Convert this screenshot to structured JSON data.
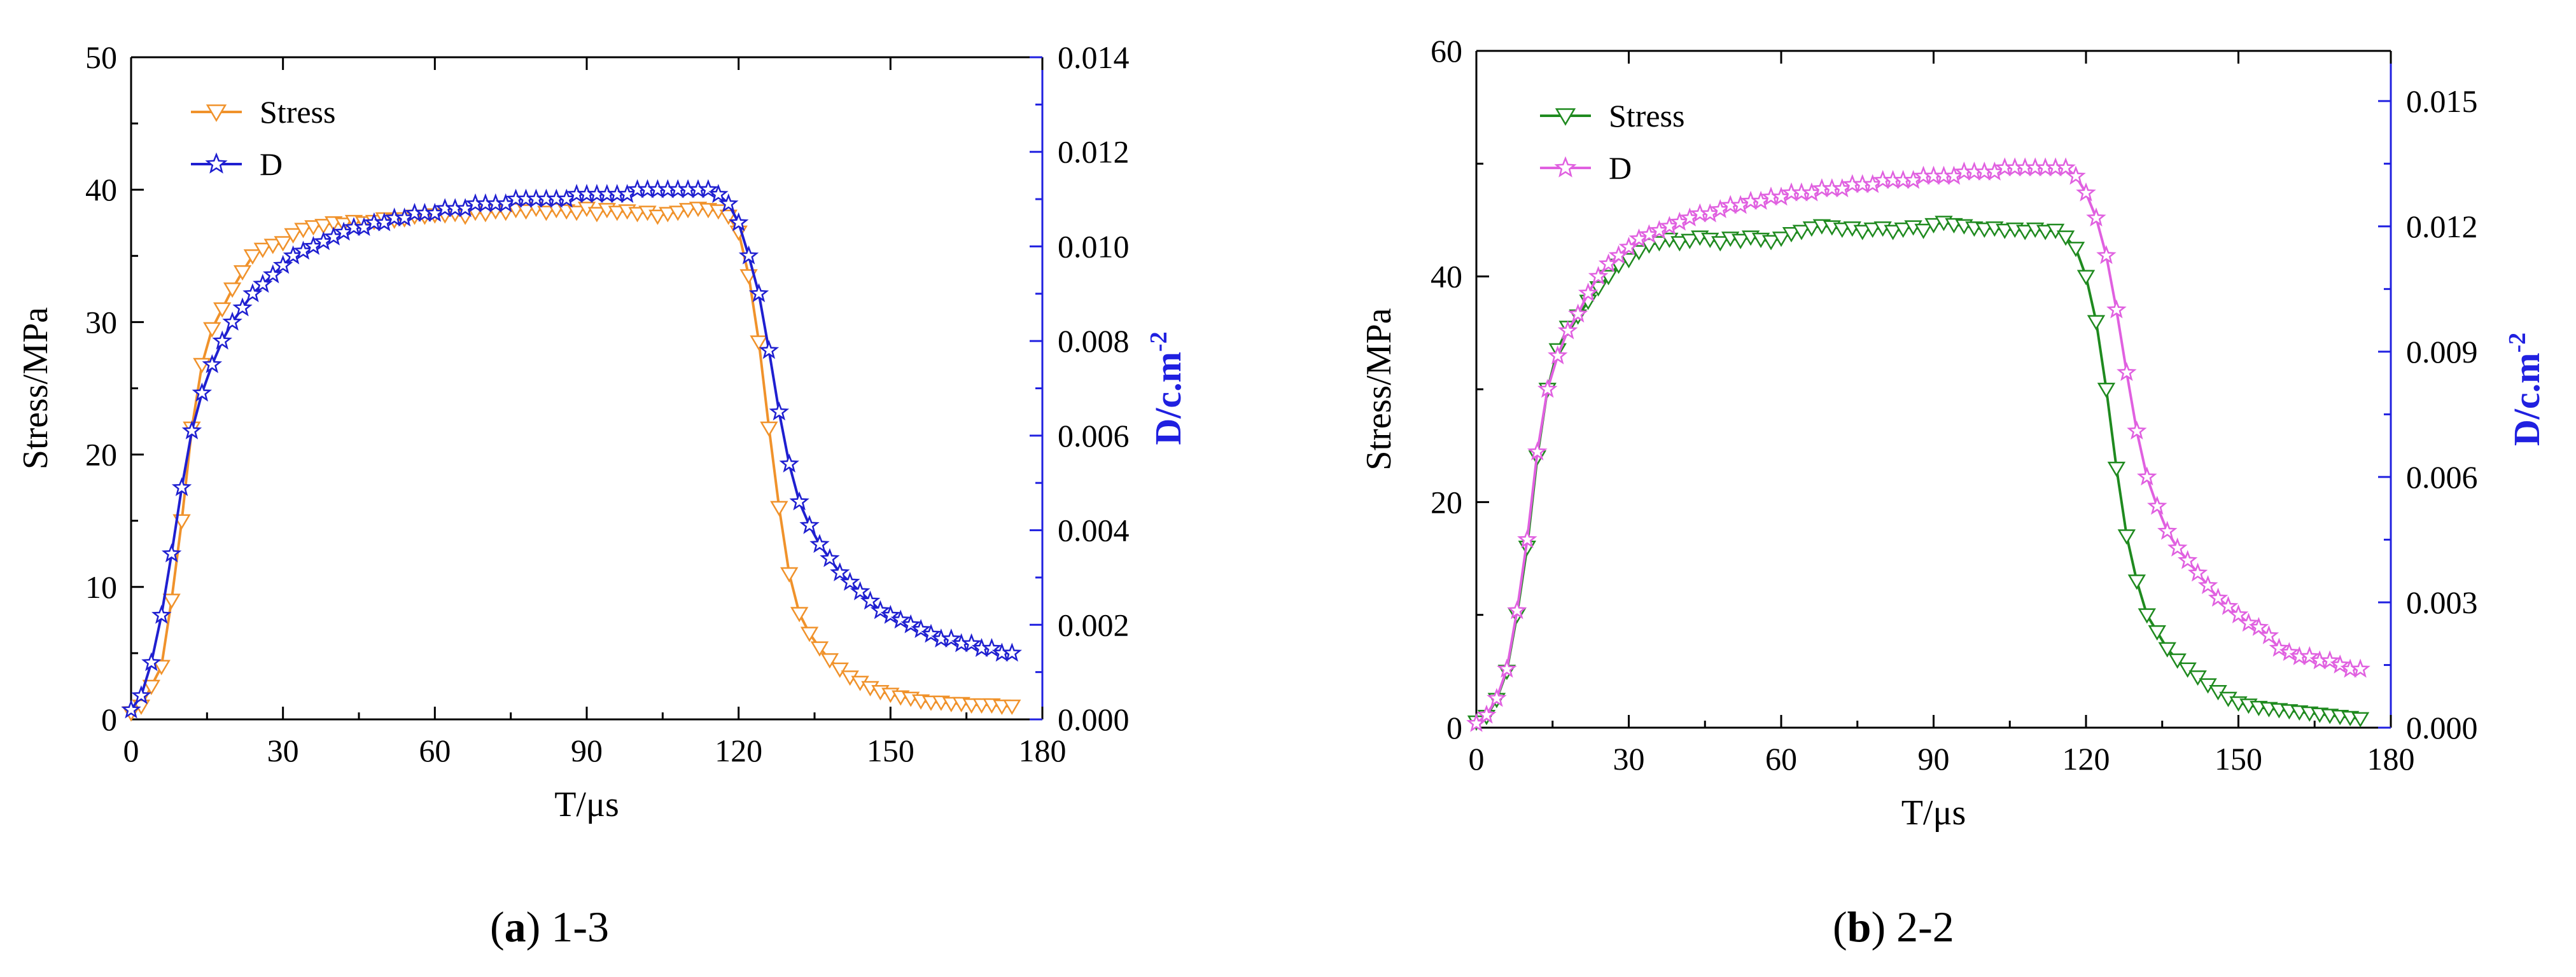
{
  "chart_data": [
    {
      "id": "a",
      "type": "line",
      "caption": {
        "letter": "a",
        "label": "1-3"
      },
      "xlabel": "T/μs",
      "ylabel_left": "Stress/MPa",
      "ylabel_right": "D/c.m",
      "ylabel_right_sup": "-2",
      "xlim": [
        0,
        180
      ],
      "ylim_left": [
        0,
        50
      ],
      "ylim_right": [
        0,
        0.014
      ],
      "xticks": [
        "0",
        "30",
        "60",
        "90",
        "120",
        "150",
        "180"
      ],
      "yticks_left": [
        "0",
        "10",
        "20",
        "30",
        "40",
        "50"
      ],
      "yticks_right": [
        "0.000",
        "0.002",
        "0.004",
        "0.006",
        "0.008",
        "0.010",
        "0.012",
        "0.014"
      ],
      "legend": [
        "Stress",
        "D"
      ],
      "colors": {
        "stress": "#f0922b",
        "d": "#1f1fd0",
        "right_axis": "#2020e0"
      },
      "series": [
        {
          "name": "Stress",
          "axis": "left",
          "marker": "triangle-down",
          "x": [
            0,
            2,
            4,
            6,
            8,
            10,
            12,
            14,
            16,
            18,
            20,
            22,
            24,
            26,
            28,
            30,
            32,
            34,
            36,
            38,
            40,
            42,
            44,
            46,
            48,
            50,
            52,
            54,
            56,
            58,
            60,
            62,
            64,
            66,
            68,
            70,
            72,
            74,
            76,
            78,
            80,
            82,
            84,
            86,
            88,
            90,
            92,
            94,
            96,
            98,
            100,
            102,
            104,
            106,
            108,
            110,
            112,
            114,
            116,
            118,
            120,
            122,
            124,
            126,
            128,
            130,
            132,
            134,
            136,
            138,
            140,
            142,
            144,
            146,
            148,
            150,
            152,
            154,
            156,
            158,
            160,
            162,
            164,
            166,
            168,
            170,
            172,
            174
          ],
          "values": [
            0.5,
            1.0,
            2.5,
            4.0,
            9.0,
            15.0,
            22.0,
            26.8,
            29.5,
            31.0,
            32.5,
            33.8,
            35.0,
            35.5,
            35.8,
            36.0,
            36.6,
            37.0,
            37.2,
            37.3,
            37.5,
            37.4,
            37.6,
            37.5,
            37.6,
            37.8,
            37.7,
            37.8,
            38.0,
            38.0,
            38.1,
            38.1,
            38.2,
            38.0,
            38.3,
            38.2,
            38.4,
            38.3,
            38.5,
            38.4,
            38.6,
            38.3,
            38.5,
            38.4,
            38.3,
            38.6,
            38.2,
            38.5,
            38.3,
            38.4,
            38.2,
            38.3,
            38.0,
            38.2,
            38.3,
            38.5,
            38.6,
            38.5,
            38.4,
            38.0,
            36.8,
            33.5,
            28.5,
            22.0,
            16.0,
            11.0,
            8.0,
            6.5,
            5.4,
            4.5,
            3.8,
            3.2,
            2.8,
            2.4,
            2.1,
            1.9,
            1.7,
            1.6,
            1.4,
            1.3,
            1.3,
            1.2,
            1.2,
            1.1,
            1.1,
            1.1,
            1.0,
            1.0
          ]
        },
        {
          "name": "D",
          "axis": "right",
          "marker": "star",
          "x": [
            0,
            2,
            4,
            6,
            8,
            10,
            12,
            14,
            16,
            18,
            20,
            22,
            24,
            26,
            28,
            30,
            32,
            34,
            36,
            38,
            40,
            42,
            44,
            46,
            48,
            50,
            52,
            54,
            56,
            58,
            60,
            62,
            64,
            66,
            68,
            70,
            72,
            74,
            76,
            78,
            80,
            82,
            84,
            86,
            88,
            90,
            92,
            94,
            96,
            98,
            100,
            102,
            104,
            106,
            108,
            110,
            112,
            114,
            116,
            118,
            120,
            122,
            124,
            126,
            128,
            130,
            132,
            134,
            136,
            138,
            140,
            142,
            144,
            146,
            148,
            150,
            152,
            154,
            156,
            158,
            160,
            162,
            164,
            166,
            168,
            170,
            172,
            174
          ],
          "values": [
            0.0002,
            0.0005,
            0.0012,
            0.0022,
            0.0035,
            0.0049,
            0.0061,
            0.0069,
            0.0075,
            0.008,
            0.0084,
            0.0087,
            0.009,
            0.0092,
            0.0094,
            0.0096,
            0.0098,
            0.0099,
            0.01,
            0.0101,
            0.0102,
            0.0103,
            0.0104,
            0.0104,
            0.0105,
            0.0105,
            0.0106,
            0.0106,
            0.0107,
            0.0107,
            0.0107,
            0.0108,
            0.0108,
            0.0108,
            0.0109,
            0.0109,
            0.0109,
            0.0109,
            0.011,
            0.011,
            0.011,
            0.011,
            0.011,
            0.011,
            0.0111,
            0.0111,
            0.0111,
            0.0111,
            0.0111,
            0.0111,
            0.0112,
            0.0112,
            0.0112,
            0.0112,
            0.0112,
            0.0112,
            0.0112,
            0.0112,
            0.0111,
            0.0109,
            0.0105,
            0.0098,
            0.009,
            0.0078,
            0.0065,
            0.0054,
            0.0046,
            0.0041,
            0.0037,
            0.0034,
            0.0031,
            0.0029,
            0.0027,
            0.0025,
            0.0023,
            0.0022,
            0.0021,
            0.002,
            0.0019,
            0.0018,
            0.0017,
            0.0017,
            0.0016,
            0.0016,
            0.0015,
            0.0015,
            0.0014,
            0.0014
          ]
        }
      ]
    },
    {
      "id": "b",
      "type": "line",
      "caption": {
        "letter": "b",
        "label": "2-2"
      },
      "xlabel": "T/μs",
      "ylabel_left": "Stress/MPa",
      "ylabel_right": "D/c.m",
      "ylabel_right_sup": "-2",
      "xlim": [
        0,
        180
      ],
      "ylim_left": [
        0,
        60
      ],
      "ylim_right": [
        0,
        0.0162
      ],
      "xticks": [
        "0",
        "30",
        "60",
        "90",
        "120",
        "150",
        "180"
      ],
      "yticks_left": [
        "0",
        "20",
        "40",
        "60"
      ],
      "yticks_right": [
        "0.000",
        "0.003",
        "0.006",
        "0.009",
        "0.012",
        "0.015"
      ],
      "legend": [
        "Stress",
        "D"
      ],
      "colors": {
        "stress": "#1f8a1f",
        "d": "#e060e0",
        "right_axis": "#2020e0"
      },
      "series": [
        {
          "name": "Stress",
          "axis": "left",
          "marker": "triangle-down",
          "x": [
            0,
            2,
            4,
            6,
            8,
            10,
            12,
            14,
            16,
            18,
            20,
            22,
            24,
            26,
            28,
            30,
            32,
            34,
            36,
            38,
            40,
            42,
            44,
            46,
            48,
            50,
            52,
            54,
            56,
            58,
            60,
            62,
            64,
            66,
            68,
            70,
            72,
            74,
            76,
            78,
            80,
            82,
            84,
            86,
            88,
            90,
            92,
            94,
            96,
            98,
            100,
            102,
            104,
            106,
            108,
            110,
            112,
            114,
            116,
            118,
            120,
            122,
            124,
            126,
            128,
            130,
            132,
            134,
            136,
            138,
            140,
            142,
            144,
            146,
            148,
            150,
            152,
            154,
            156,
            158,
            160,
            162,
            164,
            166,
            168,
            170,
            172,
            174
          ],
          "values": [
            0.5,
            1.0,
            2.5,
            5.0,
            10.0,
            16.0,
            24.0,
            30.0,
            33.5,
            35.5,
            36.5,
            37.8,
            39.0,
            40.0,
            41.0,
            41.5,
            42.2,
            42.8,
            43.0,
            43.3,
            43.0,
            43.2,
            43.5,
            43.3,
            43.0,
            43.4,
            43.2,
            43.5,
            43.3,
            43.1,
            43.4,
            43.8,
            44.0,
            44.3,
            44.5,
            44.4,
            44.2,
            44.3,
            44.0,
            44.2,
            44.3,
            44.0,
            44.2,
            44.4,
            44.1,
            44.6,
            44.8,
            44.6,
            44.5,
            44.3,
            44.2,
            44.3,
            44.1,
            44.2,
            44.0,
            44.2,
            44.0,
            44.1,
            43.5,
            42.5,
            40.0,
            36.0,
            30.0,
            23.0,
            17.0,
            13.0,
            10.0,
            8.5,
            7.0,
            6.0,
            5.2,
            4.5,
            3.8,
            3.2,
            2.6,
            2.2,
            2.0,
            1.8,
            1.7,
            1.6,
            1.5,
            1.4,
            1.3,
            1.2,
            1.1,
            1.0,
            0.9,
            0.8
          ]
        },
        {
          "name": "D",
          "axis": "right",
          "marker": "star",
          "x": [
            0,
            2,
            4,
            6,
            8,
            10,
            12,
            14,
            16,
            18,
            20,
            22,
            24,
            26,
            28,
            30,
            32,
            34,
            36,
            38,
            40,
            42,
            44,
            46,
            48,
            50,
            52,
            54,
            56,
            58,
            60,
            62,
            64,
            66,
            68,
            70,
            72,
            74,
            76,
            78,
            80,
            82,
            84,
            86,
            88,
            90,
            92,
            94,
            96,
            98,
            100,
            102,
            104,
            106,
            108,
            110,
            112,
            114,
            116,
            118,
            120,
            122,
            124,
            126,
            128,
            130,
            132,
            134,
            136,
            138,
            140,
            142,
            144,
            146,
            148,
            150,
            152,
            154,
            156,
            158,
            160,
            162,
            164,
            166,
            168,
            170,
            172,
            174
          ],
          "values": [
            0.0001,
            0.0003,
            0.0007,
            0.0014,
            0.0028,
            0.0045,
            0.0066,
            0.0081,
            0.0089,
            0.0095,
            0.0099,
            0.0104,
            0.0108,
            0.0111,
            0.0113,
            0.0115,
            0.0117,
            0.0118,
            0.0119,
            0.012,
            0.0121,
            0.0122,
            0.0123,
            0.0123,
            0.0124,
            0.0125,
            0.0125,
            0.0126,
            0.0126,
            0.0127,
            0.0127,
            0.0128,
            0.0128,
            0.0128,
            0.0129,
            0.0129,
            0.0129,
            0.013,
            0.013,
            0.013,
            0.0131,
            0.0131,
            0.0131,
            0.0131,
            0.0132,
            0.0132,
            0.0132,
            0.0132,
            0.0133,
            0.0133,
            0.0133,
            0.0133,
            0.0134,
            0.0134,
            0.0134,
            0.0134,
            0.0134,
            0.0134,
            0.0134,
            0.0132,
            0.0128,
            0.0122,
            0.0113,
            0.01,
            0.0085,
            0.0071,
            0.006,
            0.0053,
            0.0047,
            0.0043,
            0.004,
            0.0037,
            0.0034,
            0.0031,
            0.0029,
            0.0027,
            0.0025,
            0.0024,
            0.0022,
            0.0019,
            0.0018,
            0.0017,
            0.0017,
            0.0016,
            0.0016,
            0.0015,
            0.0014,
            0.0014
          ]
        }
      ]
    }
  ]
}
